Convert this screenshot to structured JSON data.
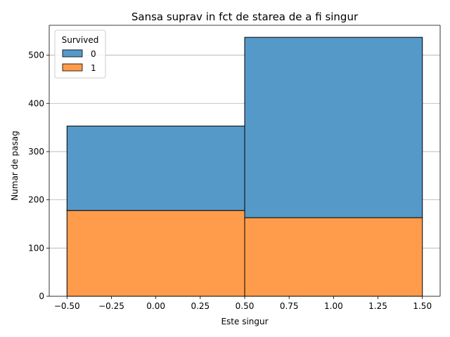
{
  "chart_data": {
    "type": "bar",
    "stacked": true,
    "title": "Sansa suprav in fct de starea de a fi singur",
    "xlabel": "Este singur",
    "ylabel": "Numar de pasag",
    "xlim": [
      -0.6,
      1.6
    ],
    "ylim": [
      0,
      562
    ],
    "xticks": [
      "−0.50",
      "−0.25",
      "0.00",
      "0.25",
      "0.50",
      "0.75",
      "1.00",
      "1.25",
      "1.50"
    ],
    "xtick_values": [
      -0.5,
      -0.25,
      0,
      0.25,
      0.5,
      0.75,
      1.0,
      1.25,
      1.5
    ],
    "yticks": [
      "0",
      "100",
      "200",
      "300",
      "400",
      "500"
    ],
    "ytick_values": [
      0,
      100,
      200,
      300,
      400,
      500
    ],
    "grid": "y",
    "bins": [
      {
        "x0": -0.5,
        "x1": 0.5
      },
      {
        "x0": 0.5,
        "x1": 1.5
      }
    ],
    "series": [
      {
        "name": "1",
        "color": "#ff9c4c",
        "values": [
          178,
          163
        ]
      },
      {
        "name": "0",
        "color": "#5599c8",
        "values": [
          175,
          374
        ]
      }
    ],
    "legend": {
      "title": "Survived",
      "placement": "top-left",
      "entries": [
        {
          "label": "0",
          "color": "#5599c8"
        },
        {
          "label": "1",
          "color": "#ff9c4c"
        }
      ]
    }
  }
}
